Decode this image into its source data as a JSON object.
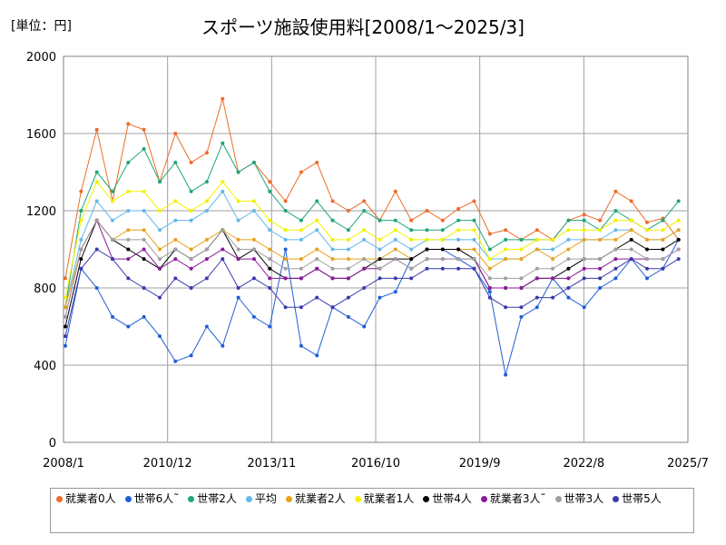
{
  "chart_data": {
    "type": "line",
    "title": "スポーツ施設使用料[2008/1～2025/3]",
    "unit_label": "[単位：円]",
    "ylim": [
      0,
      2000
    ],
    "y_ticks": [
      "0",
      "400",
      "800",
      "1200",
      "1600",
      "2000"
    ],
    "x_ticks": [
      "2008/1",
      "2010/12",
      "2013/11",
      "2016/10",
      "2019/9",
      "2022/8",
      "2025/7"
    ],
    "x_range": [
      "2008/1",
      "2025/7"
    ],
    "grid": true,
    "legend_position": "bottom",
    "series": [
      {
        "name": "就業者0人",
        "color": "#ed6c2c",
        "values": [
          850,
          1300,
          1620,
          1250,
          1650,
          1620,
          1350,
          1600,
          1450,
          1500,
          1780,
          1400,
          1450,
          1350,
          1250,
          1400,
          1450,
          1250,
          1200,
          1250,
          1150,
          1300,
          1150,
          1200,
          1150,
          1210,
          1250,
          1080,
          1100,
          1050,
          1100,
          1050,
          1150,
          1180,
          1150,
          1300,
          1250,
          1140,
          1160,
          1050
        ]
      },
      {
        "name": "世帯6人˜",
        "color": "#1f5fd6",
        "values": [
          500,
          900,
          800,
          650,
          600,
          650,
          550,
          420,
          450,
          600,
          500,
          750,
          650,
          600,
          1000,
          500,
          450,
          700,
          650,
          600,
          750,
          780,
          950,
          1000,
          1000,
          950,
          900,
          780,
          350,
          650,
          700,
          850,
          750,
          700,
          800,
          850,
          950,
          850,
          900,
          1050
        ]
      },
      {
        "name": "世帯2人",
        "color": "#1fa67a",
        "values": [
          700,
          1200,
          1400,
          1300,
          1450,
          1520,
          1350,
          1450,
          1300,
          1350,
          1550,
          1400,
          1450,
          1300,
          1200,
          1150,
          1250,
          1150,
          1100,
          1200,
          1150,
          1150,
          1100,
          1100,
          1100,
          1150,
          1150,
          1000,
          1050,
          1050,
          1050,
          1050,
          1150,
          1150,
          1100,
          1200,
          1150,
          1100,
          1150,
          1250
        ]
      },
      {
        "name": "平均",
        "color": "#62b8ea",
        "values": [
          700,
          1050,
          1250,
          1150,
          1200,
          1200,
          1100,
          1150,
          1150,
          1200,
          1300,
          1150,
          1200,
          1100,
          1050,
          1050,
          1100,
          1000,
          1000,
          1050,
          1000,
          1050,
          1000,
          1050,
          1050,
          1050,
          1050,
          950,
          950,
          950,
          1000,
          1000,
          1050,
          1050,
          1050,
          1100,
          1100,
          1050,
          1050,
          1100
        ]
      },
      {
        "name": "就業者2人",
        "color": "#e8a21c",
        "values": [
          700,
          1000,
          1150,
          1050,
          1100,
          1100,
          1000,
          1050,
          1000,
          1050,
          1100,
          1050,
          1050,
          1000,
          950,
          950,
          1000,
          950,
          950,
          950,
          950,
          1000,
          950,
          1000,
          1000,
          1000,
          1000,
          900,
          950,
          950,
          1000,
          950,
          1000,
          1050,
          1050,
          1050,
          1100,
          1050,
          1050,
          1100
        ]
      },
      {
        "name": "就業者1人",
        "color": "#f2f200",
        "values": [
          750,
          1150,
          1350,
          1250,
          1300,
          1300,
          1200,
          1250,
          1200,
          1250,
          1350,
          1250,
          1250,
          1150,
          1100,
          1100,
          1150,
          1050,
          1050,
          1100,
          1050,
          1100,
          1050,
          1050,
          1050,
          1100,
          1100,
          950,
          1000,
          1000,
          1050,
          1050,
          1100,
          1100,
          1100,
          1150,
          1150,
          1100,
          1100,
          1150
        ]
      },
      {
        "name": "世帯4人",
        "color": "#000000",
        "values": [
          600,
          950,
          1150,
          1050,
          1000,
          950,
          900,
          1000,
          950,
          1000,
          1100,
          950,
          1000,
          900,
          850,
          850,
          900,
          850,
          850,
          900,
          950,
          950,
          950,
          1000,
          1000,
          1000,
          950,
          800,
          800,
          800,
          850,
          850,
          900,
          950,
          950,
          1000,
          1050,
          1000,
          1000,
          1050
        ]
      },
      {
        "name": "就業者3人˜",
        "color": "#8b1a9b",
        "values": [
          650,
          1000,
          1150,
          950,
          950,
          1000,
          900,
          950,
          900,
          950,
          1000,
          950,
          950,
          850,
          850,
          850,
          900,
          850,
          850,
          900,
          900,
          950,
          900,
          950,
          950,
          950,
          950,
          800,
          800,
          800,
          850,
          850,
          850,
          900,
          900,
          950,
          950,
          950,
          950,
          1000
        ]
      },
      {
        "name": "世帯3人",
        "color": "#a0a0a0",
        "values": [
          650,
          1000,
          1150,
          1050,
          1050,
          1050,
          950,
          1000,
          950,
          1000,
          1100,
          1000,
          1000,
          950,
          900,
          900,
          950,
          900,
          900,
          950,
          900,
          950,
          900,
          950,
          950,
          950,
          950,
          850,
          850,
          850,
          900,
          900,
          950,
          950,
          950,
          1000,
          1000,
          950,
          950,
          1000
        ]
      },
      {
        "name": "世帯5人",
        "color": "#3a3aad",
        "values": [
          550,
          900,
          1000,
          950,
          850,
          800,
          750,
          850,
          800,
          850,
          950,
          800,
          850,
          800,
          700,
          700,
          750,
          700,
          750,
          800,
          850,
          850,
          850,
          900,
          900,
          900,
          900,
          750,
          700,
          700,
          750,
          750,
          800,
          850,
          850,
          900,
          950,
          900,
          900,
          950
        ]
      }
    ]
  }
}
